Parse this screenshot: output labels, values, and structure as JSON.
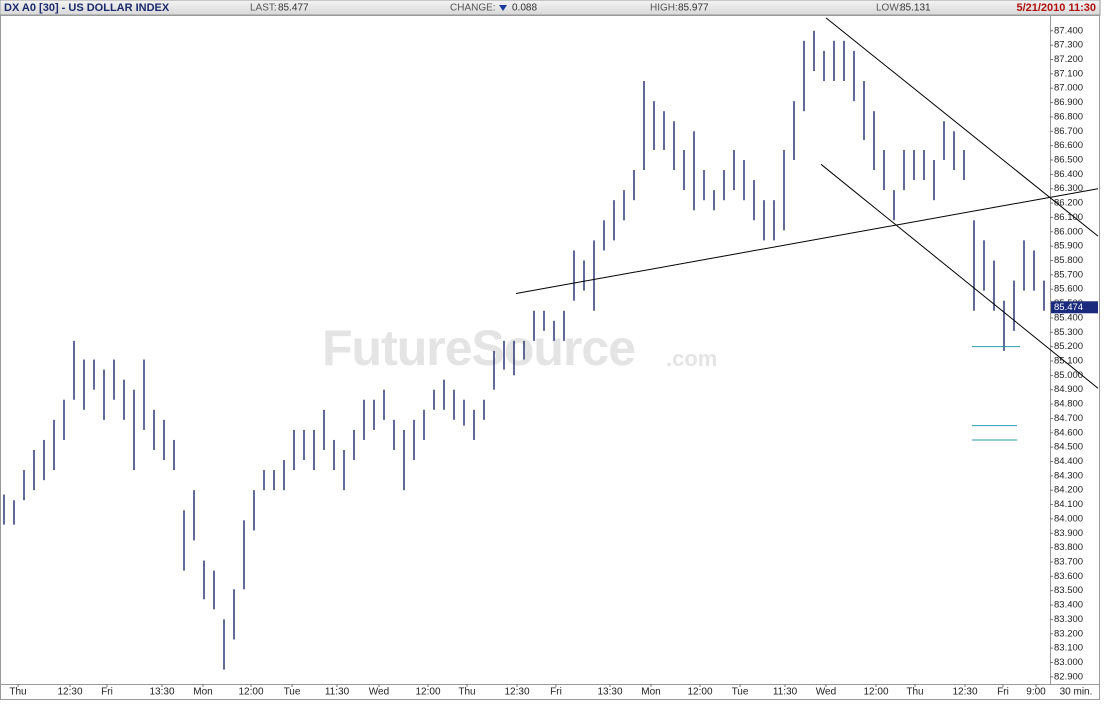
{
  "chart_data": {
    "type": "hlbar",
    "header": {
      "title": "DX A0 [30] - US DOLLAR INDEX",
      "last_label": "LAST:",
      "last": 85.477,
      "change_label": "CHANGE:",
      "change": 0.088,
      "high_label": "HIGH:",
      "high": 85.977,
      "low_label": "LOW:",
      "low": 85.131,
      "date": "5/21/2010 11:30"
    },
    "watermark": "FutureSource",
    "watermark_suffix": ".com",
    "interval": "30 min.",
    "color": "#1f2a6b",
    "high": [
      84.17,
      84.13,
      84.34,
      84.48,
      84.55,
      84.69,
      84.83,
      85.24,
      85.11,
      85.11,
      85.04,
      85.11,
      84.97,
      84.9,
      85.11,
      84.76,
      84.69,
      84.55,
      84.06,
      84.2,
      83.71,
      83.64,
      83.3,
      83.51,
      83.99,
      84.2,
      84.34,
      84.34,
      84.41,
      84.62,
      84.62,
      84.62,
      84.76,
      84.55,
      84.48,
      84.62,
      84.83,
      84.83,
      84.9,
      84.69,
      84.62,
      84.69,
      84.76,
      84.9,
      84.97,
      84.9,
      84.83,
      84.76,
      84.83,
      85.17,
      85.24,
      85.24,
      85.24,
      85.45,
      85.45,
      85.38,
      85.45,
      85.87,
      85.8,
      85.94,
      86.08,
      86.22,
      86.29,
      86.43,
      87.05,
      86.91,
      86.84,
      86.77,
      86.57,
      86.7,
      86.43,
      86.29,
      86.43,
      86.57,
      86.5,
      86.36,
      86.22,
      86.22,
      86.57,
      86.91,
      87.33,
      87.4,
      87.26,
      87.33,
      87.33,
      87.26,
      87.05,
      86.84,
      86.57,
      86.29,
      86.57,
      86.57,
      86.57,
      86.5,
      86.77,
      86.7,
      86.57,
      86.08,
      85.94,
      85.8,
      85.52,
      85.66,
      85.94,
      85.87,
      85.66
    ],
    "low": [
      83.96,
      83.96,
      84.13,
      84.2,
      84.27,
      84.34,
      84.55,
      84.83,
      84.76,
      84.9,
      84.69,
      84.83,
      84.69,
      84.34,
      84.62,
      84.48,
      84.41,
      84.34,
      83.64,
      83.85,
      83.44,
      83.37,
      82.95,
      83.16,
      83.51,
      83.92,
      84.2,
      84.2,
      84.2,
      84.34,
      84.41,
      84.34,
      84.48,
      84.34,
      84.2,
      84.41,
      84.55,
      84.62,
      84.69,
      84.48,
      84.2,
      84.41,
      84.55,
      84.76,
      84.76,
      84.69,
      84.65,
      84.55,
      84.69,
      84.9,
      85.04,
      85.0,
      85.11,
      85.24,
      85.31,
      85.24,
      85.24,
      85.52,
      85.59,
      85.45,
      85.87,
      85.94,
      86.08,
      86.22,
      86.43,
      86.57,
      86.57,
      86.43,
      86.29,
      86.15,
      86.22,
      86.15,
      86.22,
      86.29,
      86.22,
      86.08,
      85.94,
      85.94,
      86.01,
      86.5,
      86.84,
      87.12,
      87.05,
      87.05,
      87.05,
      86.91,
      86.64,
      86.43,
      86.29,
      86.08,
      86.29,
      86.36,
      86.36,
      86.22,
      86.5,
      86.43,
      86.36,
      85.45,
      85.59,
      85.45,
      85.17,
      85.31,
      85.59,
      85.59,
      85.45
    ],
    "trendlines": [
      {
        "x": [
          51.6,
          109.8
        ],
        "y": [
          85.57,
          86.3
        ],
        "color": "#000000"
      },
      {
        "x": [
          82.6,
          109.8
        ],
        "y": [
          87.49,
          85.97
        ],
        "color": "#000000"
      },
      {
        "x": [
          82.1,
          109.8
        ],
        "y": [
          86.47,
          84.91
        ],
        "color": "#000000"
      },
      {
        "x": [
          97.2,
          102.0
        ],
        "y": [
          85.2,
          85.2
        ],
        "color": "#2a9bb0"
      },
      {
        "x": [
          97.2,
          101.7
        ],
        "y": [
          84.65,
          84.65
        ],
        "color": "#2a9bb0"
      },
      {
        "x": [
          97.2,
          101.7
        ],
        "y": [
          84.55,
          84.55
        ],
        "color": "#2a9bb0"
      }
    ],
    "last_marker": 85.474,
    "xlim": [
      0,
      105
    ],
    "xticks": [
      {
        "value": 1.8,
        "label": "Thu"
      },
      {
        "value": 7.0,
        "label": "12:30"
      },
      {
        "value": 10.7,
        "label": "Fri"
      },
      {
        "value": 16.2,
        "label": "13:30"
      },
      {
        "value": 20.3,
        "label": "Mon"
      },
      {
        "value": 25.1,
        "label": "12:00"
      },
      {
        "value": 29.2,
        "label": "Tue"
      },
      {
        "value": 33.7,
        "label": "11:30"
      },
      {
        "value": 37.9,
        "label": "Wed"
      },
      {
        "value": 42.8,
        "label": "12:00"
      },
      {
        "value": 46.7,
        "label": "Thu"
      },
      {
        "value": 51.7,
        "label": "12:30"
      },
      {
        "value": 55.6,
        "label": "Fri"
      },
      {
        "value": 61.0,
        "label": "13:30"
      },
      {
        "value": 65.1,
        "label": "Mon"
      },
      {
        "value": 70.0,
        "label": "12:00"
      },
      {
        "value": 74.0,
        "label": "Tue"
      },
      {
        "value": 78.5,
        "label": "11:30"
      },
      {
        "value": 82.6,
        "label": "Wed"
      },
      {
        "value": 87.6,
        "label": "12:00"
      },
      {
        "value": 91.5,
        "label": "Thu"
      },
      {
        "value": 96.5,
        "label": "12:30"
      },
      {
        "value": 100.3,
        "label": "Fri"
      },
      {
        "value": 103.6,
        "label": "9:00"
      }
    ],
    "ylim": [
      82.85,
      87.51
    ],
    "yticks": [
      {
        "value": 82.9,
        "label": "82.900"
      },
      {
        "value": 83.0,
        "label": "83.000"
      },
      {
        "value": 83.1,
        "label": "83.100"
      },
      {
        "value": 83.2,
        "label": "83.200"
      },
      {
        "value": 83.3,
        "label": "83.300"
      },
      {
        "value": 83.4,
        "label": "83.400"
      },
      {
        "value": 83.5,
        "label": "83.500"
      },
      {
        "value": 83.6,
        "label": "83.600"
      },
      {
        "value": 83.7,
        "label": "83.700"
      },
      {
        "value": 83.8,
        "label": "83.800"
      },
      {
        "value": 83.9,
        "label": "83.900"
      },
      {
        "value": 84.0,
        "label": "84.000"
      },
      {
        "value": 84.1,
        "label": "84.100"
      },
      {
        "value": 84.2,
        "label": "84.200"
      },
      {
        "value": 84.3,
        "label": "84.300"
      },
      {
        "value": 84.4,
        "label": "84.400"
      },
      {
        "value": 84.5,
        "label": "84.500"
      },
      {
        "value": 84.6,
        "label": "84.600"
      },
      {
        "value": 84.7,
        "label": "84.700"
      },
      {
        "value": 84.8,
        "label": "84.800"
      },
      {
        "value": 84.9,
        "label": "84.900"
      },
      {
        "value": 85.0,
        "label": "85.000"
      },
      {
        "value": 85.1,
        "label": "85.100"
      },
      {
        "value": 85.2,
        "label": "85.200"
      },
      {
        "value": 85.3,
        "label": "85.300"
      },
      {
        "value": 85.4,
        "label": "85.400"
      },
      {
        "value": 85.5,
        "label": "85.500"
      },
      {
        "value": 85.6,
        "label": "85.600"
      },
      {
        "value": 85.7,
        "label": "85.700"
      },
      {
        "value": 85.8,
        "label": "85.800"
      },
      {
        "value": 85.9,
        "label": "85.900"
      },
      {
        "value": 86.0,
        "label": "86.000"
      },
      {
        "value": 86.1,
        "label": "86.100"
      },
      {
        "value": 86.2,
        "label": "86.200"
      },
      {
        "value": 86.3,
        "label": "86.300"
      },
      {
        "value": 86.4,
        "label": "86.400"
      },
      {
        "value": 86.5,
        "label": "86.500"
      },
      {
        "value": 86.6,
        "label": "86.600"
      },
      {
        "value": 86.7,
        "label": "86.700"
      },
      {
        "value": 86.8,
        "label": "86.800"
      },
      {
        "value": 86.9,
        "label": "86.900"
      },
      {
        "value": 87.0,
        "label": "87.000"
      },
      {
        "value": 87.1,
        "label": "87.100"
      },
      {
        "value": 87.2,
        "label": "87.200"
      },
      {
        "value": 87.3,
        "label": "87.300"
      },
      {
        "value": 87.4,
        "label": "87.400"
      }
    ]
  }
}
